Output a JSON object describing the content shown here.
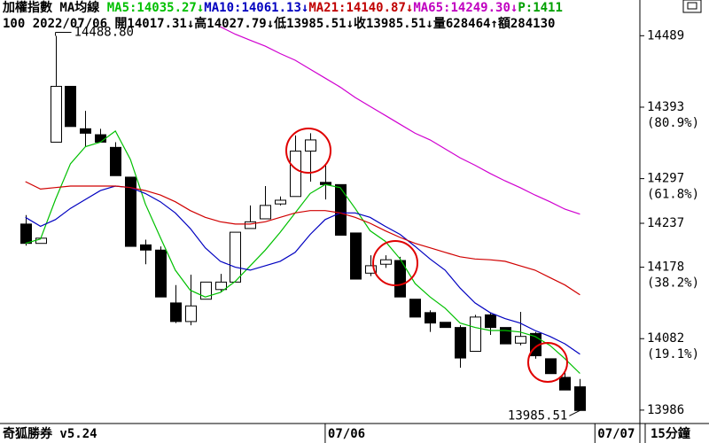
{
  "chart_data": {
    "type": "candlestick",
    "header": [
      {
        "text": "加權指數 MA均線 ",
        "color": "#000000"
      },
      {
        "text": "MA5:14035.27↓",
        "color": "#00c000"
      },
      {
        "text": "MA10:14061.13↓",
        "color": "#0000c0"
      },
      {
        "text": "MA21:14140.87↓",
        "color": "#c00000"
      },
      {
        "text": "MA65:14249.30↓",
        "color": "#c000c0"
      },
      {
        "text": "P:1411",
        "color": "#00a000"
      }
    ],
    "subheader": "100 2022/07/06 開14017.31↓高14027.79↓低13985.51↓收13985.51↓量628464↑額284130",
    "footer_left": "奇狐勝券 v5.24",
    "footer_right": "15分鐘",
    "x_ticks": [
      {
        "value": 20,
        "label": "07/06"
      },
      {
        "value": 38,
        "label": "07/07"
      }
    ],
    "xlim": [
      -1.7,
      41
    ],
    "ylim": [
      13968,
      14537
    ],
    "yticks": [
      14489,
      14393,
      14297,
      14237,
      14178,
      14082,
      13986
    ],
    "ratio_labels": [
      {
        "value": 14393,
        "label": "(80.9%)"
      },
      {
        "value": 14297,
        "label": "(61.8%)"
      },
      {
        "value": 14178,
        "label": "(38.2%)"
      },
      {
        "value": 14082,
        "label": "(19.1%)"
      }
    ],
    "high_label": {
      "value": 14488.8,
      "label": "14488.80"
    },
    "low_label": {
      "value": 13985.51,
      "label": "13985.51"
    },
    "up_color": "#ffffff",
    "down_color": "#000000",
    "open": [
      14236,
      14210,
      14346,
      14421,
      14364,
      14356,
      14339,
      14299,
      14208,
      14201,
      14130,
      14105,
      14135,
      14148,
      14158,
      14230,
      14243,
      14263,
      14273,
      14334,
      14292,
      14289,
      14224,
      14170,
      14182,
      14187,
      14135,
      14117,
      14104,
      14097,
      14065,
      14114,
      14097,
      14076,
      14089,
      14055,
      14030,
      14017.31
    ],
    "high": [
      14248,
      14217,
      14488.8,
      14421,
      14388,
      14364,
      14346,
      14299,
      14215,
      14206,
      14154,
      14168,
      14158,
      14169,
      14225,
      14261,
      14287,
      14273,
      14355,
      14358,
      14317,
      14289,
      14224,
      14194,
      14194,
      14192,
      14135,
      14120,
      14104,
      14100,
      14114,
      14117,
      14097,
      14118,
      14091,
      14055,
      14037,
      14027.79
    ],
    "low": [
      14207,
      14210,
      14346,
      14367,
      14340,
      14346,
      14301,
      14206,
      14182,
      14138,
      14103,
      14100,
      14135,
      14144,
      14158,
      14230,
      14243,
      14261,
      14273,
      14293,
      14269,
      14221,
      14162,
      14166,
      14177,
      14138,
      14111,
      14091,
      14097,
      14043,
      14065,
      14087,
      14075,
      14073,
      14055,
      14035,
      14013,
      13985.51
    ],
    "close": [
      14210,
      14217,
      14421,
      14367,
      14358,
      14346,
      14301,
      14206,
      14201,
      14138,
      14105,
      14126,
      14158,
      14158,
      14225,
      14239,
      14261,
      14268,
      14334,
      14349,
      14289,
      14221,
      14162,
      14180,
      14188,
      14138,
      14111,
      14103,
      14097,
      14056,
      14111,
      14097,
      14075,
      14085,
      14059,
      14035,
      14013,
      13985.51
    ],
    "series": [
      {
        "name": "MA5",
        "color": "#00c000",
        "values": [
          14210,
          14216,
          14269,
          14317,
          14340,
          14346,
          14361,
          14323,
          14263,
          14218,
          14174,
          14147,
          14138,
          14144,
          14159,
          14180,
          14201,
          14225,
          14251,
          14277,
          14289,
          14285,
          14257,
          14227,
          14213,
          14189,
          14156,
          14138,
          14123,
          14103,
          14097,
          14093,
          14093,
          14091,
          14085,
          14073,
          14055,
          14035.27
        ]
      },
      {
        "name": "MA10",
        "color": "#0000c0",
        "values": [
          14245,
          14233,
          14242,
          14257,
          14269,
          14281,
          14287,
          14285,
          14277,
          14266,
          14251,
          14230,
          14204,
          14186,
          14178,
          14174,
          14180,
          14186,
          14198,
          14222,
          14242,
          14251,
          14251,
          14245,
          14233,
          14222,
          14206,
          14189,
          14174,
          14150,
          14130,
          14117,
          14109,
          14103,
          14093,
          14085,
          14075,
          14061.13
        ]
      },
      {
        "name": "MA21",
        "color": "#d00000",
        "values": [
          14293,
          14283,
          14285,
          14287,
          14287,
          14287,
          14287,
          14285,
          14281,
          14275,
          14266,
          14254,
          14245,
          14239,
          14236,
          14236,
          14239,
          14245,
          14251,
          14254,
          14254,
          14251,
          14245,
          14237,
          14227,
          14218,
          14210,
          14204,
          14198,
          14192,
          14189,
          14188,
          14186,
          14180,
          14174,
          14164,
          14154,
          14140.87
        ]
      },
      {
        "name": "MA65",
        "color": "#d000d0",
        "values": [
          null,
          null,
          null,
          null,
          null,
          null,
          null,
          null,
          null,
          null,
          null,
          null,
          null,
          14501,
          14491,
          14483,
          14475,
          14465,
          14456,
          14444,
          14432,
          14420,
          14406,
          14394,
          14382,
          14370,
          14358,
          14349,
          14337,
          14325,
          14315,
          14304,
          14294,
          14285,
          14275,
          14266,
          14256,
          14249.3
        ]
      }
    ]
  }
}
